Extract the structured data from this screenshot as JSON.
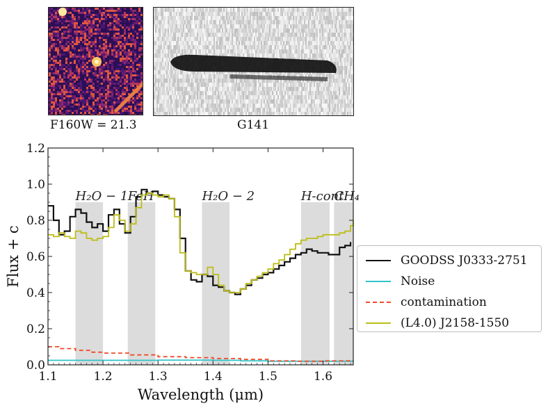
{
  "thumbnails": {
    "image_caption": "F160W = 21.3",
    "grism_caption": "G141"
  },
  "colors": {
    "object": "#111111",
    "noise": "#2ec4c8",
    "contamination": "#f04a2a",
    "template": "#bdbd17",
    "band_fill": "#dcdcdc",
    "stamp_bg": "#3b1463"
  },
  "chart_data": {
    "type": "line",
    "xlabel": "Wavelength (μm)",
    "ylabel": "Flux + c",
    "xlim": [
      1.1,
      1.655
    ],
    "ylim": [
      0.0,
      1.2
    ],
    "x_ticks": [
      "1.1",
      "1.2",
      "1.3",
      "1.4",
      "1.5",
      "1.6"
    ],
    "y_ticks": [
      "0.0",
      "0.2",
      "0.4",
      "0.6",
      "0.8",
      "1.0",
      "1.2"
    ],
    "bands": [
      {
        "label": "H₂O − 1",
        "x0": 1.15,
        "x1": 1.2
      },
      {
        "label": "FeH",
        "x0": 1.245,
        "x1": 1.295
      },
      {
        "label": "H₂O − 2",
        "x0": 1.38,
        "x1": 1.43
      },
      {
        "label": "H-cont",
        "x0": 1.56,
        "x1": 1.612
      },
      {
        "label": "CH₄",
        "x0": 1.62,
        "x1": 1.655
      }
    ],
    "band_top": 0.9,
    "legend_position": "right",
    "series": [
      {
        "name": "GOODSS J0333-2751",
        "style": "solid",
        "x": [
          1.1,
          1.11,
          1.12,
          1.13,
          1.14,
          1.15,
          1.16,
          1.17,
          1.18,
          1.19,
          1.2,
          1.21,
          1.22,
          1.23,
          1.24,
          1.25,
          1.26,
          1.27,
          1.28,
          1.29,
          1.3,
          1.31,
          1.32,
          1.33,
          1.34,
          1.35,
          1.36,
          1.37,
          1.38,
          1.39,
          1.4,
          1.41,
          1.42,
          1.43,
          1.44,
          1.45,
          1.46,
          1.47,
          1.48,
          1.49,
          1.5,
          1.51,
          1.52,
          1.53,
          1.54,
          1.55,
          1.56,
          1.57,
          1.58,
          1.59,
          1.6,
          1.61,
          1.62,
          1.63,
          1.64,
          1.65
        ],
        "y": [
          0.88,
          0.8,
          0.72,
          0.74,
          0.82,
          0.86,
          0.84,
          0.79,
          0.76,
          0.78,
          0.74,
          0.83,
          0.86,
          0.78,
          0.73,
          0.82,
          0.93,
          0.97,
          0.95,
          0.96,
          0.94,
          0.93,
          0.92,
          0.86,
          0.7,
          0.52,
          0.47,
          0.46,
          0.5,
          0.49,
          0.44,
          0.43,
          0.41,
          0.4,
          0.39,
          0.42,
          0.44,
          0.47,
          0.48,
          0.5,
          0.51,
          0.53,
          0.55,
          0.57,
          0.59,
          0.61,
          0.62,
          0.64,
          0.63,
          0.62,
          0.62,
          0.61,
          0.61,
          0.65,
          0.66,
          0.68
        ]
      },
      {
        "name": "Noise",
        "style": "solid",
        "x": [
          1.1,
          1.2,
          1.3,
          1.4,
          1.45,
          1.5,
          1.6,
          1.655
        ],
        "y": [
          0.025,
          0.025,
          0.026,
          0.025,
          0.022,
          0.02,
          0.02,
          0.02
        ]
      },
      {
        "name": "contamination",
        "style": "dashed",
        "x": [
          1.1,
          1.12,
          1.15,
          1.18,
          1.2,
          1.25,
          1.3,
          1.35,
          1.4,
          1.45,
          1.5,
          1.55,
          1.6,
          1.655
        ],
        "y": [
          0.1,
          0.09,
          0.08,
          0.07,
          0.065,
          0.055,
          0.045,
          0.04,
          0.035,
          0.03,
          0.022,
          0.02,
          0.022,
          0.025
        ]
      },
      {
        "name": "(L4.0) J2158-1550",
        "style": "solid",
        "x": [
          1.1,
          1.11,
          1.12,
          1.13,
          1.14,
          1.15,
          1.16,
          1.17,
          1.18,
          1.19,
          1.2,
          1.21,
          1.22,
          1.23,
          1.24,
          1.25,
          1.26,
          1.27,
          1.28,
          1.29,
          1.3,
          1.31,
          1.32,
          1.33,
          1.34,
          1.35,
          1.36,
          1.37,
          1.38,
          1.39,
          1.4,
          1.41,
          1.42,
          1.43,
          1.44,
          1.45,
          1.46,
          1.47,
          1.48,
          1.49,
          1.5,
          1.51,
          1.52,
          1.53,
          1.54,
          1.55,
          1.56,
          1.57,
          1.58,
          1.59,
          1.6,
          1.61,
          1.62,
          1.63,
          1.64,
          1.65,
          1.655
        ],
        "y": [
          0.72,
          0.71,
          0.73,
          0.71,
          0.7,
          0.74,
          0.73,
          0.7,
          0.69,
          0.7,
          0.71,
          0.76,
          0.83,
          0.8,
          0.74,
          0.78,
          0.87,
          0.94,
          0.95,
          0.94,
          0.93,
          0.94,
          0.92,
          0.82,
          0.62,
          0.52,
          0.51,
          0.5,
          0.5,
          0.54,
          0.5,
          0.44,
          0.41,
          0.4,
          0.4,
          0.42,
          0.45,
          0.47,
          0.49,
          0.51,
          0.53,
          0.56,
          0.58,
          0.61,
          0.64,
          0.67,
          0.69,
          0.7,
          0.7,
          0.71,
          0.72,
          0.72,
          0.72,
          0.73,
          0.74,
          0.77,
          0.8
        ]
      }
    ]
  }
}
